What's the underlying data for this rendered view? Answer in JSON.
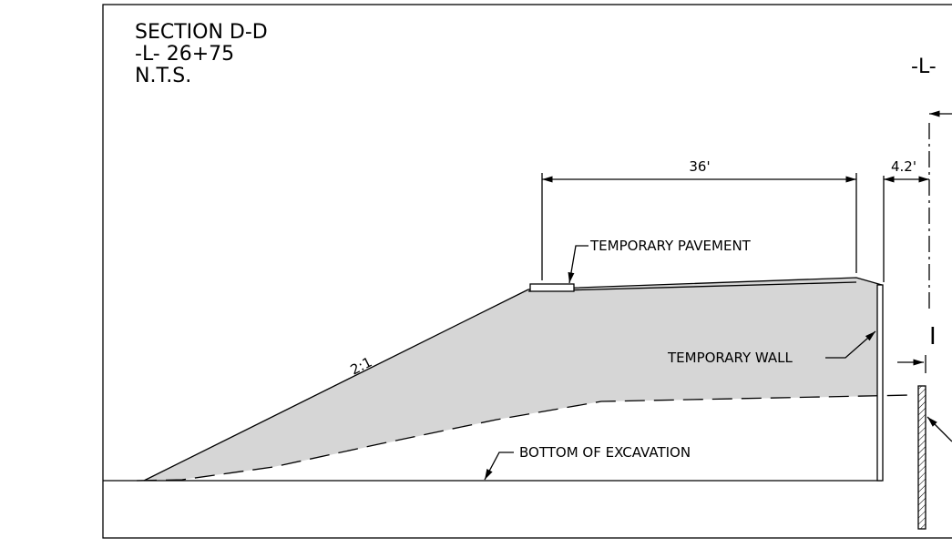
{
  "title": {
    "section": "SECTION D-D",
    "station": "-L- 26+75",
    "scale": "N.T.S."
  },
  "labels": {
    "centerline": "-L-",
    "width": "36'",
    "offset": "4.2'",
    "pavement": "TEMPORARY PAVEMENT",
    "wall": "TEMPORARY WALL",
    "slope": "2:1",
    "excavation": "BOTTOM OF EXCAVATION"
  }
}
